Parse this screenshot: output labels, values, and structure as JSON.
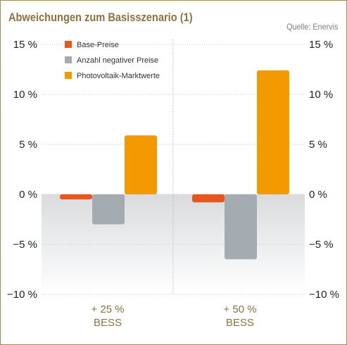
{
  "title": "Abweichungen zum Basisszenario (1)",
  "source": "Quelle: Enervis",
  "colors": {
    "series_0": "#e8551f",
    "series_1": "#a4acb1",
    "series_2": "#f39a00",
    "accent": "#8c7340"
  },
  "chart_data": {
    "type": "bar",
    "categories": [
      [
        "+ 25 %",
        "BESS"
      ],
      [
        "+ 50 %",
        "BESS"
      ]
    ],
    "series": [
      {
        "name": "Base-Preise",
        "values": [
          -0.5,
          -0.8
        ]
      },
      {
        "name": "Anzahl negativer Preise",
        "values": [
          -3.0,
          -6.5
        ]
      },
      {
        "name": "Photovoltaik-Marktwerte",
        "values": [
          5.9,
          12.4
        ]
      }
    ],
    "ylim": [
      -10,
      15
    ],
    "y_ticks": [
      "15 %",
      "10 %",
      "5 %",
      "0 %",
      "−5 %",
      "−10 %"
    ],
    "y_tick_values": [
      15,
      10,
      5,
      0,
      -5,
      -10
    ],
    "legend_position": "top-left",
    "grid": true
  }
}
